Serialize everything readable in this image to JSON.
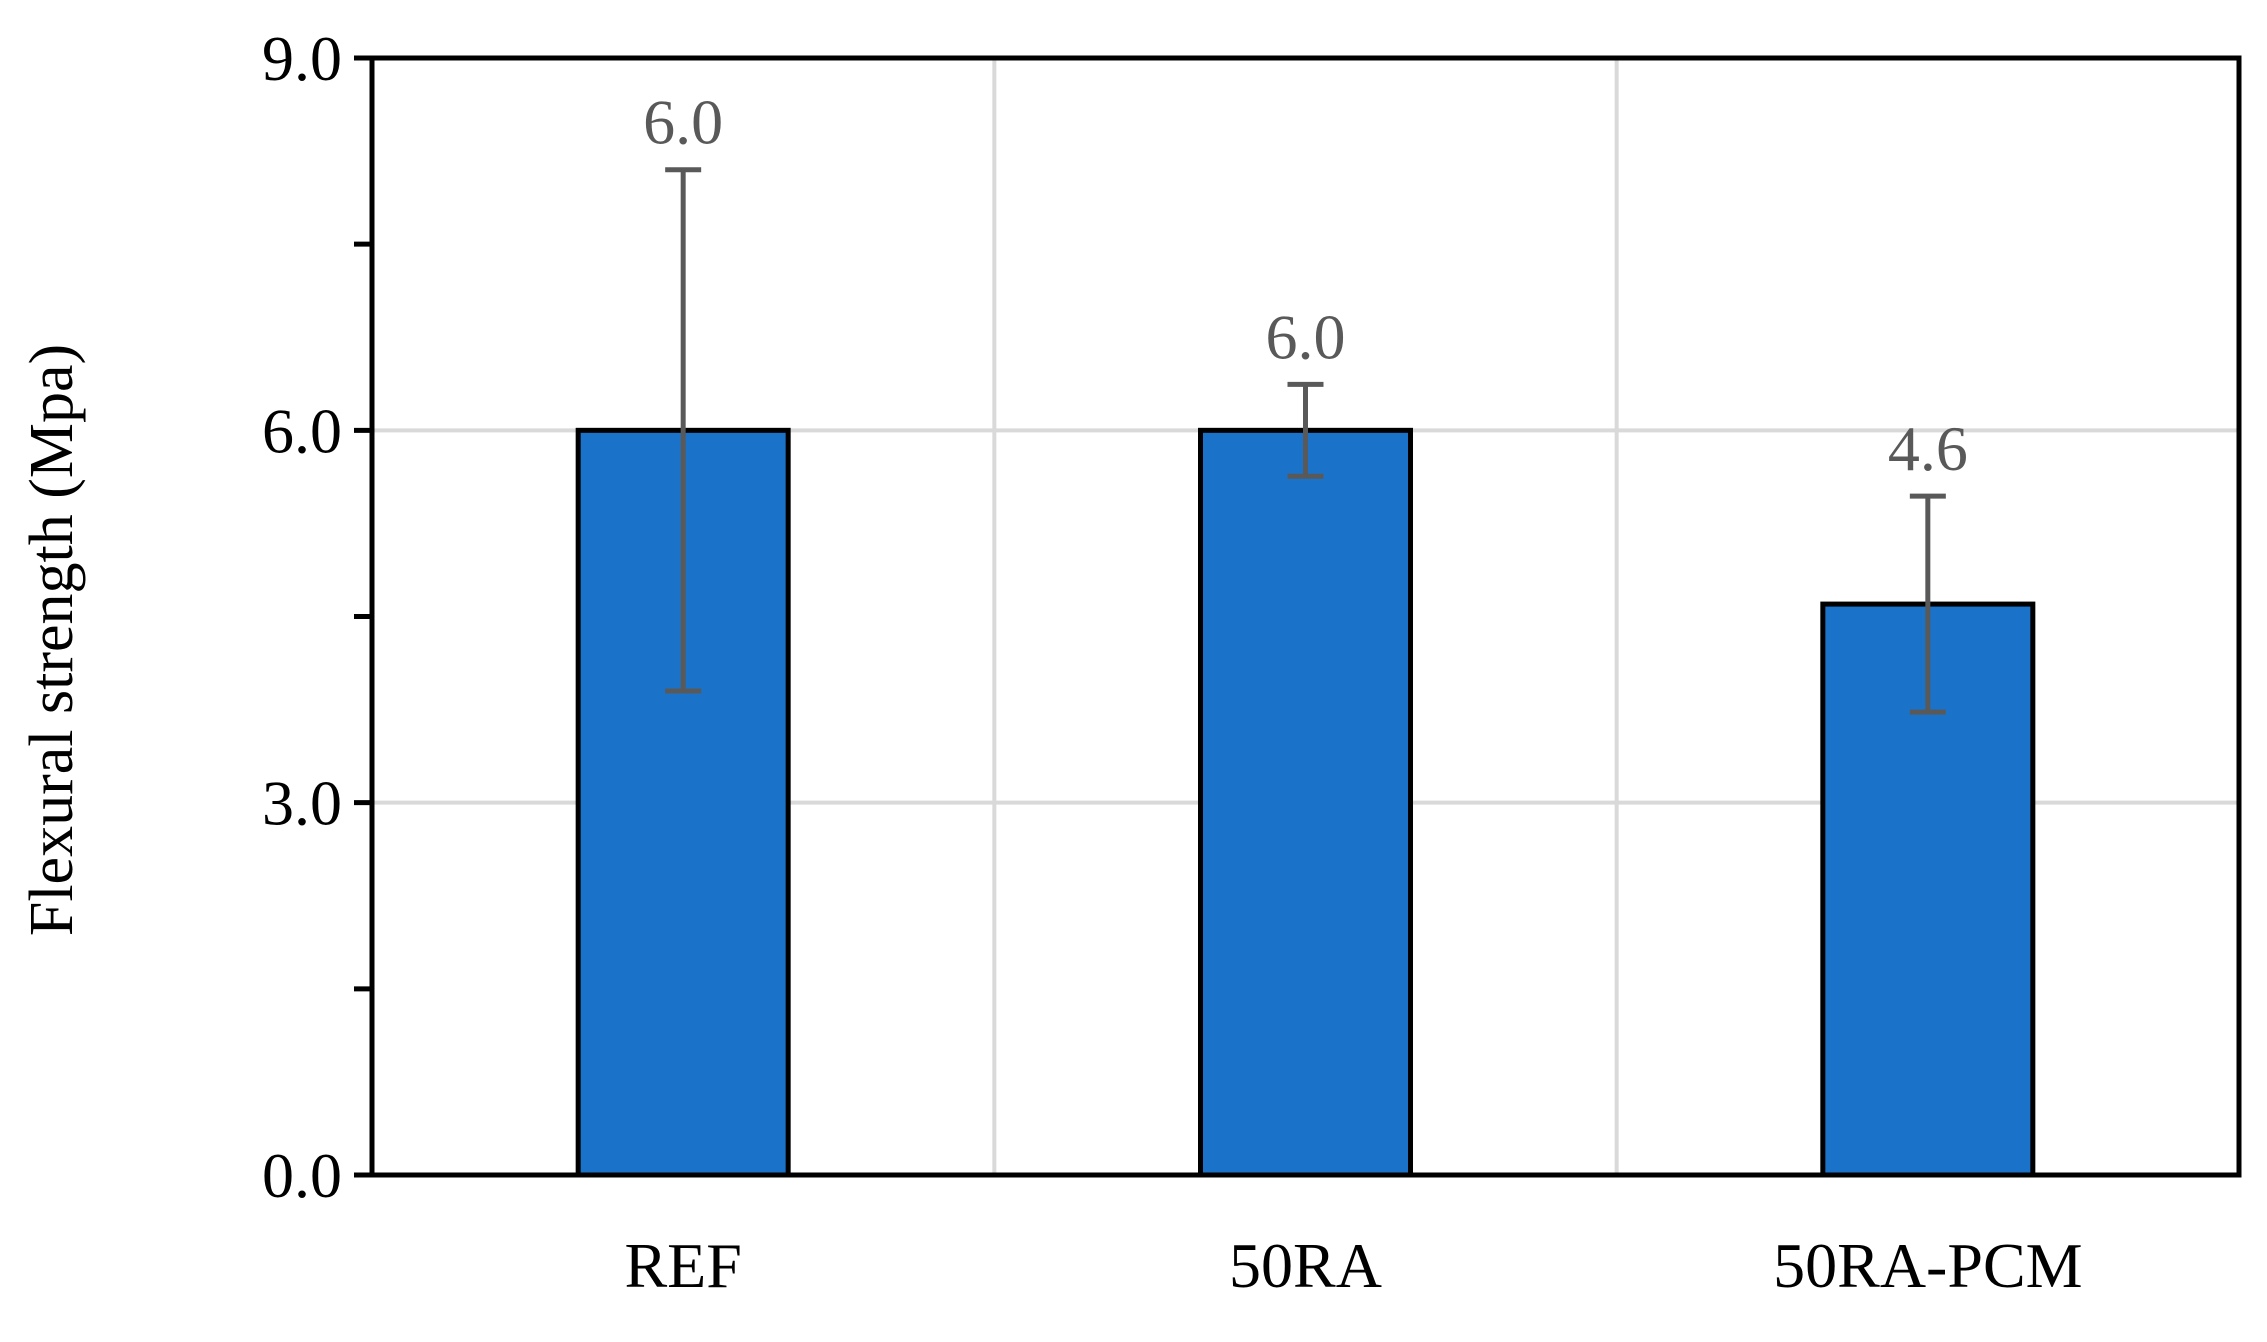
{
  "chart_data": {
    "type": "bar",
    "title": "",
    "xlabel": "",
    "ylabel": "Flexural strength (Mpa)",
    "categories": [
      "REF",
      "50RA",
      "50RA-PCM"
    ],
    "values": [
      6.0,
      6.0,
      4.6
    ],
    "data_labels": [
      "6.0",
      "6.0",
      "4.6"
    ],
    "error": [
      2.1,
      0.37,
      0.87
    ],
    "ylim": [
      0,
      9.0
    ],
    "y_major_ticks": [
      "0.0",
      "3.0",
      "6.0",
      "9.0"
    ],
    "y_minor_ticks": [
      1.5,
      4.5,
      7.5
    ],
    "grid": true,
    "legend": "none",
    "colors": {
      "bar_fill": "#1a73c8",
      "bar_stroke": "#000000",
      "error_bar": "#595959",
      "data_label": "#595959",
      "grid": "#d9d9d9",
      "axis": "#000000"
    }
  }
}
